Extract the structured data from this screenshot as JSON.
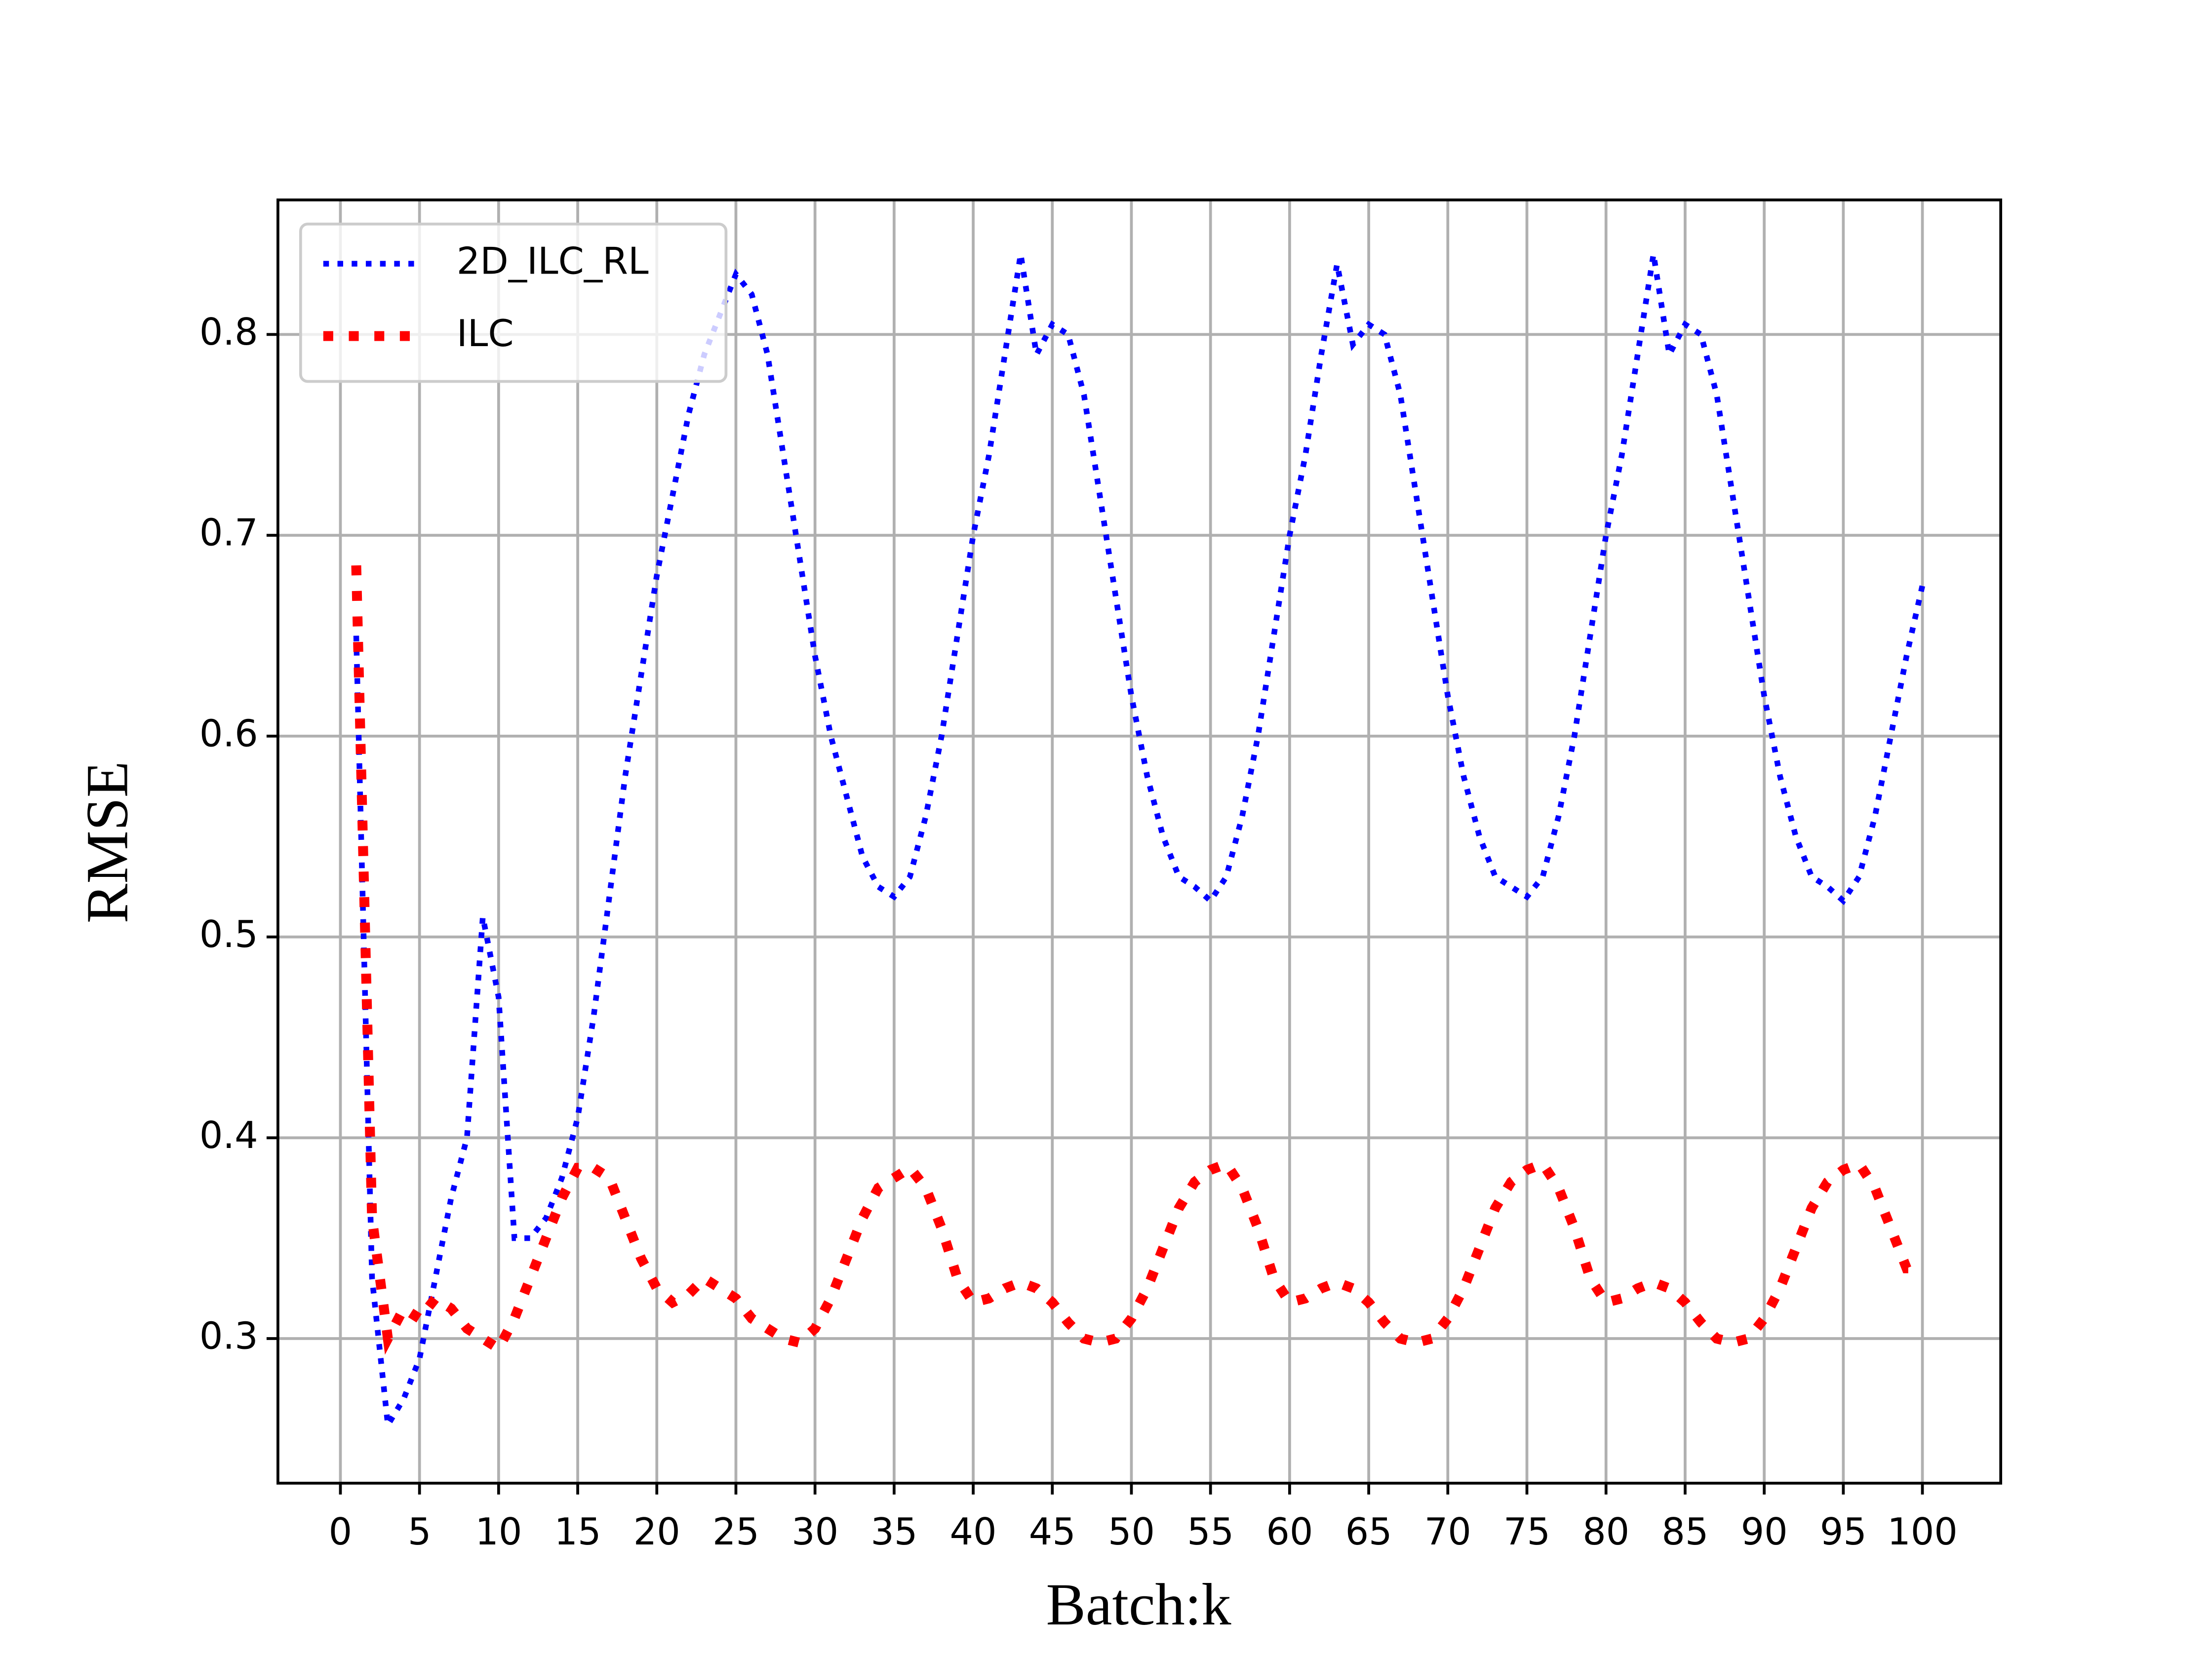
{
  "chart_data": {
    "type": "line",
    "xlabel": "Batch:k",
    "ylabel": "RMSE",
    "x": [
      1,
      2,
      3,
      4,
      5,
      6,
      7,
      8,
      9,
      10,
      11,
      12,
      13,
      14,
      15,
      16,
      17,
      18,
      19,
      20,
      21,
      22,
      23,
      24,
      25,
      26,
      27,
      28,
      29,
      30,
      31,
      32,
      33,
      34,
      35,
      36,
      37,
      38,
      39,
      40,
      41,
      42,
      43,
      44,
      45,
      46,
      47,
      48,
      49,
      50,
      51,
      52,
      53,
      54,
      55,
      56,
      57,
      58,
      59,
      60,
      61,
      62,
      63,
      64,
      65,
      66,
      67,
      68,
      69,
      70,
      71,
      72,
      73,
      74,
      75,
      76,
      77,
      78,
      79,
      80,
      81,
      82,
      83,
      84,
      85,
      86,
      87,
      88,
      89,
      90,
      91,
      92,
      93,
      94,
      95,
      96,
      97,
      98,
      99,
      100
    ],
    "series": [
      {
        "name": "2D_ILC_RL",
        "color": "#0000ff",
        "values": [
          0.65,
          0.33,
          0.257,
          0.27,
          0.29,
          0.33,
          0.37,
          0.4,
          0.51,
          0.47,
          0.35,
          0.35,
          0.36,
          0.38,
          0.41,
          0.46,
          0.52,
          0.58,
          0.63,
          0.68,
          0.72,
          0.76,
          0.79,
          0.81,
          0.83,
          0.82,
          0.79,
          0.74,
          0.69,
          0.64,
          0.6,
          0.57,
          0.54,
          0.525,
          0.52,
          0.53,
          0.56,
          0.6,
          0.65,
          0.7,
          0.74,
          0.79,
          0.84,
          0.79,
          0.805,
          0.8,
          0.77,
          0.72,
          0.67,
          0.62,
          0.58,
          0.55,
          0.53,
          0.525,
          0.518,
          0.53,
          0.56,
          0.6,
          0.65,
          0.7,
          0.74,
          0.79,
          0.835,
          0.795,
          0.805,
          0.8,
          0.77,
          0.72,
          0.67,
          0.62,
          0.58,
          0.55,
          0.53,
          0.525,
          0.52,
          0.53,
          0.56,
          0.6,
          0.65,
          0.7,
          0.74,
          0.79,
          0.84,
          0.79,
          0.805,
          0.8,
          0.77,
          0.72,
          0.67,
          0.62,
          0.58,
          0.55,
          0.53,
          0.525,
          0.518,
          0.53,
          0.56,
          0.6,
          0.64,
          0.675
        ]
      },
      {
        "name": "ILC",
        "color": "#ff0000",
        "values": [
          0.685,
          0.36,
          0.3,
          0.315,
          0.31,
          0.32,
          0.315,
          0.305,
          0.3,
          0.295,
          0.31,
          0.33,
          0.35,
          0.37,
          0.385,
          0.385,
          0.38,
          0.36,
          0.34,
          0.325,
          0.318,
          0.322,
          0.33,
          0.325,
          0.32,
          0.31,
          0.305,
          0.3,
          0.298,
          0.305,
          0.32,
          0.34,
          0.36,
          0.375,
          0.38,
          0.385,
          0.375,
          0.355,
          0.33,
          0.318,
          0.32,
          0.325,
          0.328,
          0.325,
          0.318,
          0.308,
          0.3,
          0.298,
          0.3,
          0.31,
          0.325,
          0.345,
          0.365,
          0.378,
          0.384,
          0.387,
          0.375,
          0.355,
          0.33,
          0.318,
          0.32,
          0.325,
          0.328,
          0.325,
          0.318,
          0.308,
          0.3,
          0.298,
          0.3,
          0.31,
          0.325,
          0.345,
          0.365,
          0.378,
          0.384,
          0.387,
          0.375,
          0.355,
          0.33,
          0.318,
          0.32,
          0.325,
          0.328,
          0.325,
          0.318,
          0.308,
          0.3,
          0.298,
          0.3,
          0.31,
          0.325,
          0.345,
          0.365,
          0.378,
          0.384,
          0.387,
          0.375,
          0.355,
          0.335,
          0.335
        ]
      }
    ],
    "xlim": [
      -3.95,
      104.95
    ],
    "ylim": [
      0.228,
      0.867
    ],
    "xticks": [
      0,
      5,
      10,
      15,
      20,
      25,
      30,
      35,
      40,
      45,
      50,
      55,
      60,
      65,
      70,
      75,
      80,
      85,
      90,
      95,
      100
    ],
    "yticks": [
      {
        "value": 0.3,
        "label": "0.3"
      },
      {
        "value": 0.4,
        "label": "0.4"
      },
      {
        "value": 0.5,
        "label": "0.5"
      },
      {
        "value": 0.6,
        "label": "0.6"
      },
      {
        "value": 0.7,
        "label": "0.7"
      },
      {
        "value": 0.8,
        "label": "0.8"
      }
    ],
    "grid": true,
    "legend": "upper left"
  }
}
